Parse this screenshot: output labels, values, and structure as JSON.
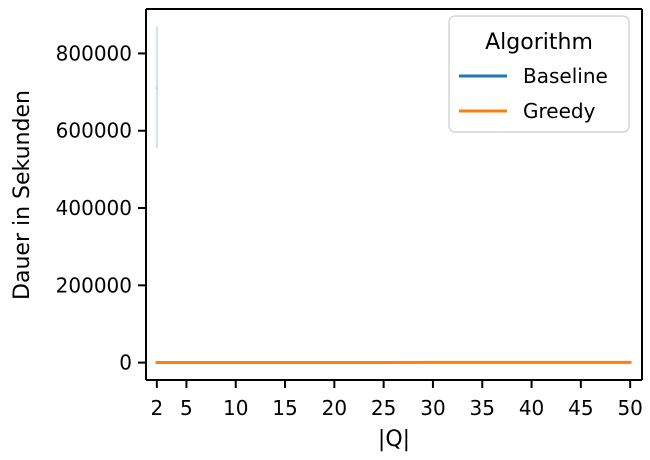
{
  "chart_data": {
    "type": "line",
    "xlabel": "|Q|",
    "ylabel": "Dauer in Sekunden",
    "xlim": [
      0.9,
      51.2
    ],
    "ylim": [
      -45000,
      915000
    ],
    "xticks": [
      2,
      5,
      10,
      15,
      20,
      25,
      30,
      35,
      40,
      45,
      50
    ],
    "yticks": [
      0,
      200000,
      400000,
      600000,
      800000
    ],
    "grid": false,
    "legend": {
      "title": "Algorithm",
      "placement": "top-right"
    },
    "series": [
      {
        "name": "Baseline",
        "color": "#1f77b4",
        "x": [
          2
        ],
        "y": [
          710000
        ],
        "ci": [
          [
            555000,
            870000
          ]
        ]
      },
      {
        "name": "Greedy",
        "color": "#ff7f0e",
        "x": [
          2,
          5,
          10,
          15,
          20,
          25,
          30,
          35,
          40,
          45,
          50
        ],
        "y": [
          200,
          250,
          300,
          350,
          400,
          450,
          500,
          550,
          600,
          650,
          700
        ]
      }
    ]
  }
}
